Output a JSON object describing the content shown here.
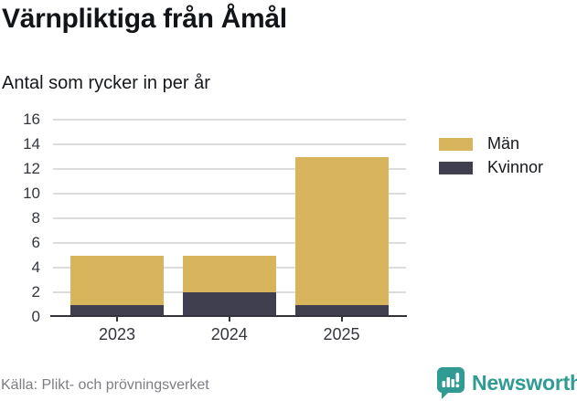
{
  "header": {
    "title": "Värnpliktiga från Åmål",
    "subtitle": "Antal som rycker in per år"
  },
  "chart_data": {
    "type": "bar",
    "stacked": true,
    "title": "Värnpliktiga från Åmål",
    "subtitle": "Antal som rycker in per år",
    "xlabel": "",
    "ylabel": "",
    "categories": [
      "2023",
      "2024",
      "2025"
    ],
    "series": [
      {
        "name": "Män",
        "color": "#d8b45c",
        "values": [
          4,
          3,
          12
        ]
      },
      {
        "name": "Kvinnor",
        "color": "#3f3f4f",
        "values": [
          1,
          2,
          1
        ]
      }
    ],
    "stack_order_bottom_to_top": [
      "Kvinnor",
      "Män"
    ],
    "ylim": [
      0,
      16
    ],
    "yticks": [
      0,
      2,
      4,
      6,
      8,
      10,
      12,
      14,
      16
    ],
    "grid": true,
    "legend_position": "right"
  },
  "legend": {
    "items": [
      {
        "label": "Män",
        "color": "#d8b45c"
      },
      {
        "label": "Kvinnor",
        "color": "#3f3f4f"
      }
    ]
  },
  "footer": {
    "source": "Källa: Plikt- och prövningsverket",
    "brand": "Newsworthy",
    "brand_color": "#2f9b92"
  }
}
